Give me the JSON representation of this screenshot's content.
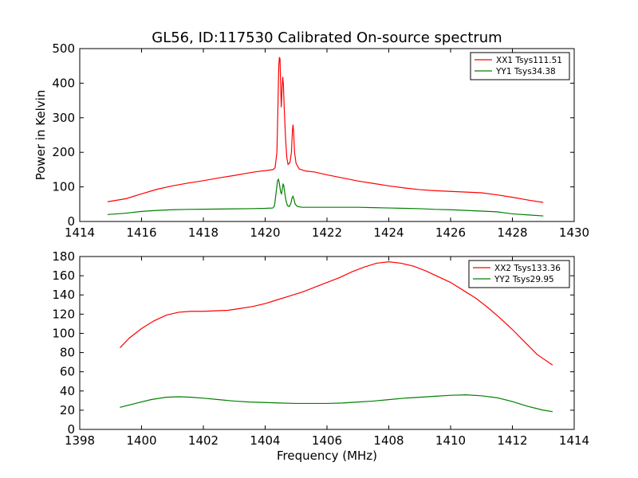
{
  "figure": {
    "title": "GL56, ID:117530 Calibrated On-source spectrum"
  },
  "chart_data": [
    {
      "type": "line",
      "title": "GL56, ID:117530 Calibrated On-source spectrum",
      "xlabel": "",
      "ylabel": "Power in Kelvin",
      "xlim": [
        1414,
        1430
      ],
      "ylim": [
        0,
        500
      ],
      "xticks": [
        1414,
        1416,
        1418,
        1420,
        1422,
        1424,
        1426,
        1428,
        1430
      ],
      "yticks": [
        0,
        100,
        200,
        300,
        400,
        500
      ],
      "grid": false,
      "legend_position": "top-right",
      "series": [
        {
          "name": "XX1 Tsys111.51",
          "color": "#ff0000",
          "points": [
            [
              1414.9,
              57
            ],
            [
              1415.5,
              66
            ],
            [
              1416,
              80
            ],
            [
              1416.5,
              93
            ],
            [
              1417,
              103
            ],
            [
              1417.5,
              111
            ],
            [
              1418,
              118
            ],
            [
              1418.5,
              126
            ],
            [
              1419,
              133
            ],
            [
              1419.5,
              141
            ],
            [
              1419.8,
              145
            ],
            [
              1420.1,
              148
            ],
            [
              1420.25,
              150
            ],
            [
              1420.32,
              155
            ],
            [
              1420.38,
              200
            ],
            [
              1420.41,
              320
            ],
            [
              1420.44,
              450
            ],
            [
              1420.46,
              475
            ],
            [
              1420.48,
              470
            ],
            [
              1420.5,
              400
            ],
            [
              1420.52,
              330
            ],
            [
              1420.55,
              390
            ],
            [
              1420.57,
              418
            ],
            [
              1420.59,
              395
            ],
            [
              1420.62,
              320
            ],
            [
              1420.66,
              240
            ],
            [
              1420.7,
              185
            ],
            [
              1420.74,
              165
            ],
            [
              1420.8,
              170
            ],
            [
              1420.85,
              200
            ],
            [
              1420.88,
              260
            ],
            [
              1420.9,
              280
            ],
            [
              1420.92,
              260
            ],
            [
              1420.95,
              200
            ],
            [
              1421.0,
              168
            ],
            [
              1421.1,
              152
            ],
            [
              1421.3,
              146
            ],
            [
              1421.6,
              143
            ],
            [
              1422,
              135
            ],
            [
              1422.5,
              126
            ],
            [
              1423,
              117
            ],
            [
              1423.5,
              110
            ],
            [
              1424,
              103
            ],
            [
              1424.5,
              97
            ],
            [
              1425,
              92
            ],
            [
              1425.5,
              89
            ],
            [
              1426,
              87
            ],
            [
              1426.5,
              85
            ],
            [
              1427,
              83
            ],
            [
              1427.5,
              77
            ],
            [
              1428,
              70
            ],
            [
              1428.5,
              62
            ],
            [
              1429,
              55
            ]
          ]
        },
        {
          "name": "YY1 Tsys34.38",
          "color": "#008000",
          "points": [
            [
              1414.9,
              20
            ],
            [
              1415.5,
              24
            ],
            [
              1416,
              29
            ],
            [
              1416.5,
              32
            ],
            [
              1417,
              34
            ],
            [
              1417.5,
              35
            ],
            [
              1418,
              35.5
            ],
            [
              1418.5,
              36
            ],
            [
              1419,
              36.5
            ],
            [
              1419.5,
              37
            ],
            [
              1420,
              38
            ],
            [
              1420.25,
              39
            ],
            [
              1420.3,
              45
            ],
            [
              1420.35,
              80
            ],
            [
              1420.4,
              118
            ],
            [
              1420.43,
              122
            ],
            [
              1420.46,
              110
            ],
            [
              1420.5,
              85
            ],
            [
              1420.53,
              80
            ],
            [
              1420.56,
              98
            ],
            [
              1420.58,
              108
            ],
            [
              1420.6,
              105
            ],
            [
              1420.63,
              85
            ],
            [
              1420.67,
              62
            ],
            [
              1420.72,
              46
            ],
            [
              1420.78,
              43
            ],
            [
              1420.83,
              52
            ],
            [
              1420.87,
              68
            ],
            [
              1420.9,
              73
            ],
            [
              1420.93,
              65
            ],
            [
              1420.97,
              50
            ],
            [
              1421.05,
              43
            ],
            [
              1421.2,
              41
            ],
            [
              1421.6,
              41
            ],
            [
              1422,
              41
            ],
            [
              1422.5,
              41
            ],
            [
              1423,
              41
            ],
            [
              1423.5,
              40
            ],
            [
              1424,
              39
            ],
            [
              1424.5,
              38
            ],
            [
              1425,
              37
            ],
            [
              1425.5,
              35
            ],
            [
              1426,
              34
            ],
            [
              1426.5,
              32
            ],
            [
              1427,
              30
            ],
            [
              1427.5,
              28
            ],
            [
              1428,
              22
            ],
            [
              1428.5,
              19
            ],
            [
              1429,
              16
            ]
          ]
        }
      ]
    },
    {
      "type": "line",
      "title": "",
      "xlabel": "Frequency (MHz)",
      "ylabel": "",
      "xlim": [
        1398,
        1414
      ],
      "ylim": [
        0,
        180
      ],
      "xticks": [
        1398,
        1400,
        1402,
        1404,
        1406,
        1408,
        1410,
        1412,
        1414
      ],
      "yticks": [
        0,
        20,
        40,
        60,
        80,
        100,
        120,
        140,
        160,
        180
      ],
      "grid": false,
      "legend_position": "top-right",
      "series": [
        {
          "name": "XX2 Tsys133.36",
          "color": "#ff0000",
          "points": [
            [
              1399.3,
              85
            ],
            [
              1399.6,
              95
            ],
            [
              1400,
              105
            ],
            [
              1400.4,
              113
            ],
            [
              1400.8,
              119
            ],
            [
              1401.2,
              122
            ],
            [
              1401.6,
              123
            ],
            [
              1402,
              123
            ],
            [
              1402.4,
              123.5
            ],
            [
              1402.8,
              124
            ],
            [
              1403.2,
              126
            ],
            [
              1403.6,
              128
            ],
            [
              1404,
              131
            ],
            [
              1404.4,
              135
            ],
            [
              1404.8,
              139
            ],
            [
              1405.2,
              143
            ],
            [
              1405.6,
              148
            ],
            [
              1406,
              153
            ],
            [
              1406.4,
              158
            ],
            [
              1406.8,
              164
            ],
            [
              1407.2,
              169
            ],
            [
              1407.6,
              173
            ],
            [
              1408,
              174.5
            ],
            [
              1408.4,
              173
            ],
            [
              1408.8,
              170
            ],
            [
              1409.2,
              165
            ],
            [
              1409.6,
              159
            ],
            [
              1410,
              153
            ],
            [
              1410.4,
              145
            ],
            [
              1410.8,
              137
            ],
            [
              1411.2,
              127
            ],
            [
              1411.6,
              116
            ],
            [
              1412,
              104
            ],
            [
              1412.4,
              91
            ],
            [
              1412.8,
              78
            ],
            [
              1413.3,
              67
            ]
          ]
        },
        {
          "name": "YY2 Tsys29.95",
          "color": "#008000",
          "points": [
            [
              1399.3,
              23
            ],
            [
              1399.8,
              27
            ],
            [
              1400.3,
              31
            ],
            [
              1400.8,
              33.5
            ],
            [
              1401.2,
              34
            ],
            [
              1401.6,
              33.5
            ],
            [
              1402,
              32.5
            ],
            [
              1402.5,
              31
            ],
            [
              1403,
              29.5
            ],
            [
              1403.5,
              28.5
            ],
            [
              1404,
              28
            ],
            [
              1404.5,
              27.5
            ],
            [
              1405,
              27
            ],
            [
              1405.5,
              27
            ],
            [
              1406,
              27
            ],
            [
              1406.5,
              27.5
            ],
            [
              1407,
              28.5
            ],
            [
              1407.5,
              29.5
            ],
            [
              1408,
              31
            ],
            [
              1408.5,
              32.5
            ],
            [
              1409,
              33.5
            ],
            [
              1409.5,
              34.5
            ],
            [
              1410,
              35.5
            ],
            [
              1410.5,
              36
            ],
            [
              1411,
              35
            ],
            [
              1411.5,
              33
            ],
            [
              1412,
              29
            ],
            [
              1412.5,
              24
            ],
            [
              1413,
              20
            ],
            [
              1413.3,
              18.5
            ]
          ]
        }
      ]
    }
  ]
}
